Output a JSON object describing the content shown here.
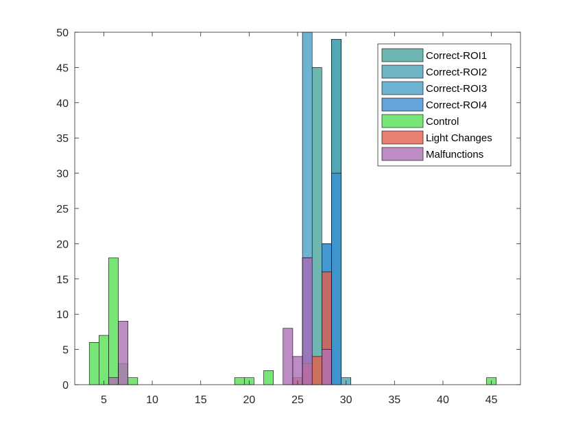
{
  "chart_data": {
    "type": "bar",
    "title": "",
    "xlabel": "",
    "ylabel": "",
    "xlim": [
      2,
      48
    ],
    "ylim": [
      0,
      50
    ],
    "xticks": [
      5,
      10,
      15,
      20,
      25,
      30,
      35,
      40,
      45
    ],
    "yticks": [
      0,
      5,
      10,
      15,
      20,
      25,
      30,
      35,
      40,
      45,
      50
    ],
    "bin_width": 1,
    "grid": false,
    "legend_position": "top-right",
    "series": [
      {
        "name": "Correct-ROI1",
        "color": "#4aa59e",
        "bins": [
          [
            27,
            45
          ],
          [
            29,
            49
          ]
        ]
      },
      {
        "name": "Correct-ROI2",
        "color": "#4aa4b6",
        "bins": [
          [
            29,
            49
          ],
          [
            30,
            1
          ]
        ]
      },
      {
        "name": "Correct-ROI3",
        "color": "#4ba0c8",
        "bins": [
          [
            26,
            50
          ],
          [
            28,
            20
          ]
        ]
      },
      {
        "name": "Correct-ROI4",
        "color": "#3c8fd2",
        "bins": [
          [
            26,
            18
          ],
          [
            28,
            20
          ],
          [
            29,
            30
          ]
        ]
      },
      {
        "name": "Control",
        "color": "#55e055",
        "bins": [
          [
            4,
            6
          ],
          [
            5,
            7
          ],
          [
            6,
            18
          ],
          [
            7,
            3
          ],
          [
            8,
            1
          ],
          [
            19,
            1
          ],
          [
            20,
            1
          ],
          [
            22,
            2
          ],
          [
            45,
            1
          ]
        ]
      },
      {
        "name": "Light Changes",
        "color": "#e45f4b",
        "bins": [
          [
            25,
            1
          ],
          [
            26,
            3
          ],
          [
            27,
            4
          ],
          [
            28,
            16
          ]
        ]
      },
      {
        "name": "Malfunctions",
        "color": "#ae6fb5",
        "bins": [
          [
            6,
            1
          ],
          [
            7,
            9
          ],
          [
            24,
            8
          ],
          [
            25,
            4
          ],
          [
            26,
            18
          ],
          [
            28,
            5
          ]
        ]
      }
    ]
  }
}
